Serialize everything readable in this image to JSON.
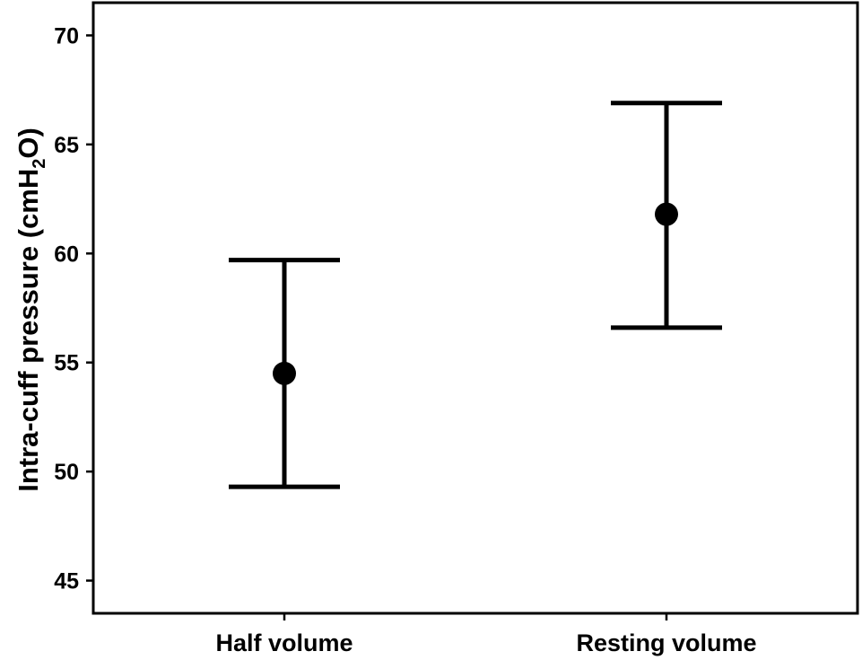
{
  "chart_data": {
    "type": "scatter",
    "title": "",
    "xlabel": "",
    "ylabel": {
      "prefix": "Intra-cuff pressure  (cmH",
      "subscript": "2",
      "suffix": "O)"
    },
    "ylim": [
      43.5,
      71.5
    ],
    "yticks": [
      45,
      50,
      55,
      60,
      65,
      70
    ],
    "categories": [
      "Half volume",
      "Resting volume"
    ],
    "series": [
      {
        "values": [
          54.5,
          61.8
        ],
        "error_lower": [
          49.3,
          56.6
        ],
        "error_upper": [
          59.7,
          66.9
        ]
      }
    ],
    "grid": false,
    "legend": "none",
    "colors": {
      "marker": "#000000",
      "axis": "#000000",
      "background": "#ffffff"
    }
  }
}
